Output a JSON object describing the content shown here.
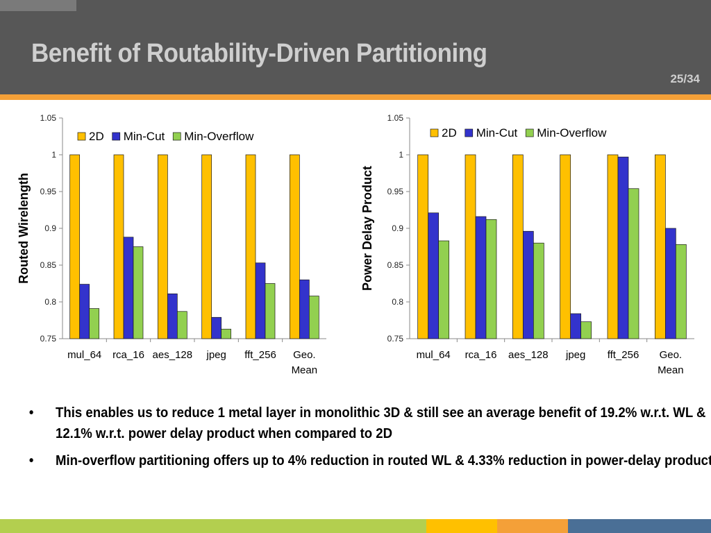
{
  "slide": {
    "title": "Benefit of Routability-Driven Partitioning",
    "page": "25/34"
  },
  "colors": {
    "header_bg": "#575757",
    "accent_orange": "#f4a038",
    "series_2d": "#ffc000",
    "series_mincut": "#3333cc",
    "series_minoverflow": "#92d050",
    "footer": [
      "#b3cf4f",
      "#ffc000",
      "#f4a038",
      "#4a6f96"
    ]
  },
  "chart_data": [
    {
      "type": "bar",
      "title": "",
      "xlabel": "",
      "ylabel": "Routed Wirelength",
      "ylim": [
        0.75,
        1.05
      ],
      "yticks": [
        "0.75",
        "0.8",
        "0.85",
        "0.9",
        "0.95",
        "1",
        "1.05"
      ],
      "categories": [
        "mul_64",
        "rca_16",
        "aes_128",
        "jpeg",
        "fft_256",
        "Geo. Mean"
      ],
      "legend": "top-left",
      "grid": false,
      "series": [
        {
          "name": "2D",
          "values": [
            1,
            1,
            1,
            1,
            1,
            1
          ]
        },
        {
          "name": "Min-Cut",
          "values": [
            0.824,
            0.888,
            0.811,
            0.779,
            0.853,
            0.83
          ]
        },
        {
          "name": "Min-Overflow",
          "values": [
            0.791,
            0.875,
            0.787,
            0.763,
            0.825,
            0.808
          ]
        }
      ]
    },
    {
      "type": "bar",
      "title": "",
      "xlabel": "",
      "ylabel": "Power Delay Product",
      "ylim": [
        0.75,
        1.05
      ],
      "yticks": [
        "0.75",
        "0.8",
        "0.85",
        "0.9",
        "0.95",
        "1",
        "1.05"
      ],
      "categories": [
        "mul_64",
        "rca_16",
        "aes_128",
        "jpeg",
        "fft_256",
        "Geo. Mean"
      ],
      "legend": "top-right",
      "grid": false,
      "series": [
        {
          "name": "2D",
          "values": [
            1,
            1,
            1,
            1,
            1,
            1
          ]
        },
        {
          "name": "Min-Cut",
          "values": [
            0.921,
            0.916,
            0.896,
            0.784,
            0.997,
            0.9
          ]
        },
        {
          "name": "Min-Overflow",
          "values": [
            0.883,
            0.912,
            0.88,
            0.773,
            0.954,
            0.878
          ]
        }
      ]
    }
  ],
  "bullets": [
    {
      "marker": "•",
      "text": "This enables us to reduce 1 metal layer in monolithic 3D & still see an average benefit of 19.2% w.r.t. WL & 12.1% w.r.t. power delay product when compared to 2D"
    },
    {
      "marker": "•",
      "text": "Min-overflow partitioning offers up to 4% reduction in routed WL & 4.33% reduction in power-delay product"
    }
  ]
}
